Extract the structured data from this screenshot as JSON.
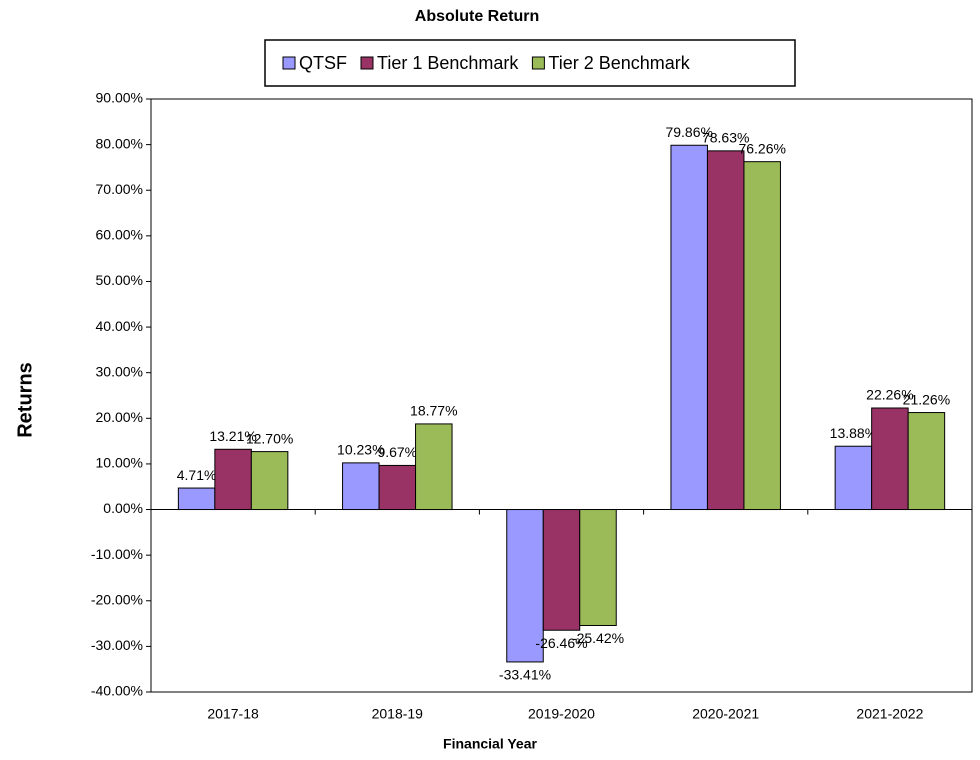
{
  "chart_data": {
    "type": "bar",
    "title": "Absolute Return",
    "x_label": "Financial Year",
    "y_label": "Returns",
    "categories": [
      "2017-18",
      "2018-19",
      "2019-2020",
      "2020-2021",
      "2021-2022"
    ],
    "series": [
      {
        "name": "QTSF",
        "color": "#9999ff",
        "values": [
          4.71,
          10.23,
          -33.41,
          79.86,
          13.88
        ],
        "value_labels": [
          "4.71%",
          "10.23%",
          "-33.41%",
          "79.86%",
          "13.88%"
        ]
      },
      {
        "name": "Tier 1 Benchmark",
        "color": "#993366",
        "values": [
          13.21,
          9.67,
          -26.46,
          78.63,
          22.26
        ],
        "value_labels": [
          "13.21%",
          "9.67%",
          "-26.46%",
          "78.63%",
          "22.26%"
        ]
      },
      {
        "name": "Tier 2 Benchmark",
        "color": "#9bbb59",
        "values": [
          12.7,
          18.77,
          -25.42,
          76.26,
          21.26
        ],
        "value_labels": [
          "12.70%",
          "18.77%",
          "-25.42%",
          "76.26%",
          "21.26%"
        ]
      }
    ],
    "ylim": [
      -40,
      90
    ],
    "yticks": [
      {
        "value": -40,
        "label": "-40.00%"
      },
      {
        "value": -30,
        "label": "-30.00%"
      },
      {
        "value": -20,
        "label": "-20.00%"
      },
      {
        "value": -10,
        "label": "-10.00%"
      },
      {
        "value": 0,
        "label": "0.00%"
      },
      {
        "value": 10,
        "label": "10.00%"
      },
      {
        "value": 20,
        "label": "20.00%"
      },
      {
        "value": 30,
        "label": "30.00%"
      },
      {
        "value": 40,
        "label": "40.00%"
      },
      {
        "value": 50,
        "label": "50.00%"
      },
      {
        "value": 60,
        "label": "60.00%"
      },
      {
        "value": 70,
        "label": "70.00%"
      },
      {
        "value": 80,
        "label": "80.00%"
      },
      {
        "value": 90,
        "label": "90.00%"
      }
    ],
    "grid": false,
    "legend": "top"
  }
}
